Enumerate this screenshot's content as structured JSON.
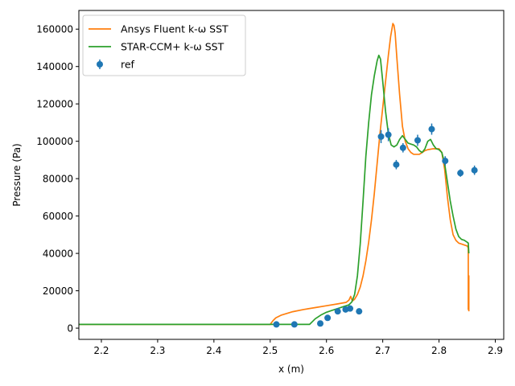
{
  "chart_data": {
    "type": "line",
    "xlabel": "x (m)",
    "ylabel": "Pressure (Pa)",
    "xlim": [
      2.16,
      2.915
    ],
    "ylim": [
      -6000,
      170000
    ],
    "x_ticks": [
      2.2,
      2.3,
      2.4,
      2.5,
      2.6,
      2.7,
      2.8,
      2.9
    ],
    "x_tick_labels": [
      "2.2",
      "2.3",
      "2.4",
      "2.5",
      "2.6",
      "2.7",
      "2.8",
      "2.9"
    ],
    "y_ticks": [
      0,
      20000,
      40000,
      60000,
      80000,
      100000,
      120000,
      140000,
      160000
    ],
    "y_tick_labels": [
      "0",
      "20000",
      "40000",
      "60000",
      "80000",
      "100000",
      "120000",
      "140000",
      "160000"
    ],
    "grid": false,
    "legend_position": "top-left",
    "series": [
      {
        "name": "Ansys Fluent k-ω SST",
        "kind": "line",
        "color": "#ff7f0e",
        "x": [
          2.16,
          2.5,
          2.505,
          2.51,
          2.52,
          2.54,
          2.56,
          2.58,
          2.6,
          2.62,
          2.635,
          2.64,
          2.643,
          2.646,
          2.65,
          2.655,
          2.66,
          2.665,
          2.67,
          2.675,
          2.68,
          2.685,
          2.69,
          2.695,
          2.7,
          2.705,
          2.71,
          2.714,
          2.718,
          2.72,
          2.722,
          2.725,
          2.73,
          2.735,
          2.74,
          2.745,
          2.75,
          2.755,
          2.76,
          2.765,
          2.77,
          2.775,
          2.78,
          2.79,
          2.8,
          2.805,
          2.81,
          2.815,
          2.82,
          2.825,
          2.83,
          2.835,
          2.84,
          2.845,
          2.85,
          2.852,
          2.852,
          2.853,
          2.853
        ],
        "y": [
          2000,
          2000,
          4000,
          5500,
          7000,
          8800,
          10000,
          11000,
          12000,
          13000,
          13800,
          15000,
          17000,
          14500,
          15500,
          18000,
          22000,
          28000,
          36000,
          46000,
          58000,
          72000,
          88000,
          104000,
          118000,
          132000,
          146000,
          156000,
          163000,
          162000,
          158000,
          145000,
          125000,
          108000,
          100000,
          96000,
          94000,
          93000,
          93000,
          93000,
          94000,
          95000,
          95500,
          96000,
          96000,
          94000,
          85000,
          70000,
          58000,
          50000,
          47000,
          45500,
          45000,
          44500,
          44000,
          43000,
          10000,
          28000,
          9000
        ]
      },
      {
        "name": "STAR-CCM+ k-ω SST",
        "kind": "line",
        "color": "#2ca02c",
        "x": [
          2.16,
          2.57,
          2.575,
          2.58,
          2.59,
          2.6,
          2.61,
          2.62,
          2.63,
          2.64,
          2.645,
          2.65,
          2.655,
          2.66,
          2.665,
          2.67,
          2.675,
          2.68,
          2.685,
          2.69,
          2.693,
          2.696,
          2.7,
          2.705,
          2.71,
          2.715,
          2.72,
          2.725,
          2.73,
          2.735,
          2.74,
          2.745,
          2.75,
          2.755,
          2.76,
          2.765,
          2.77,
          2.775,
          2.78,
          2.785,
          2.79,
          2.795,
          2.8,
          2.805,
          2.81,
          2.815,
          2.82,
          2.825,
          2.83,
          2.835,
          2.84,
          2.845,
          2.85,
          2.852,
          2.853
        ],
        "y": [
          2000,
          2000,
          3500,
          5000,
          7000,
          8500,
          9500,
          10500,
          11500,
          12500,
          14000,
          18000,
          28000,
          45000,
          68000,
          92000,
          110000,
          125000,
          135000,
          143000,
          146000,
          144000,
          132000,
          116000,
          104000,
          98000,
          97000,
          98000,
          101000,
          103000,
          101000,
          99000,
          98500,
          98000,
          97000,
          95000,
          94000,
          96000,
          100000,
          101000,
          98000,
          96000,
          95500,
          94000,
          88000,
          78000,
          68000,
          60000,
          53000,
          49000,
          47500,
          47000,
          46000,
          45500,
          40000
        ]
      },
      {
        "name": "ref",
        "kind": "errorbar",
        "color": "#1f77b4",
        "x": [
          2.511,
          2.543,
          2.589,
          2.602,
          2.62,
          2.634,
          2.642,
          2.658,
          2.697,
          2.71,
          2.724,
          2.736,
          2.762,
          2.787,
          2.811,
          2.838,
          2.863
        ],
        "y": [
          2000,
          2000,
          2500,
          5500,
          9000,
          10000,
          10500,
          9000,
          102500,
          103500,
          87500,
          96500,
          100500,
          106500,
          89500,
          83000,
          84500
        ],
        "yerr": [
          0,
          0,
          0,
          0,
          0,
          0,
          0,
          0,
          3500,
          3500,
          2500,
          2500,
          3000,
          3000,
          2500,
          2000,
          2500
        ]
      }
    ]
  }
}
